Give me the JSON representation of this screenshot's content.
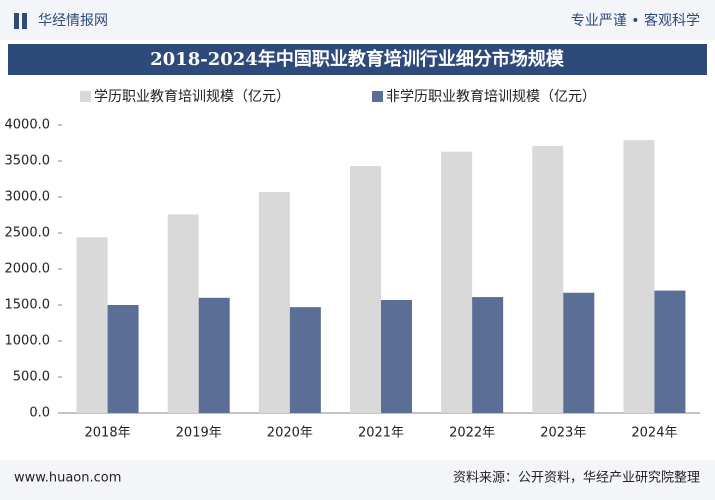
{
  "header": {
    "brand": "华经情报网",
    "slogan": "专业严谨 • 客观科学"
  },
  "chart_data": {
    "type": "bar",
    "title": "2018-2024年中国职业教育培训行业细分市场规模",
    "categories": [
      "2018年",
      "2019年",
      "2020年",
      "2021年",
      "2022年",
      "2023年",
      "2024年"
    ],
    "series": [
      {
        "name": "学历职业教育培训规模（亿元）",
        "color": "#d9d9d9",
        "values": [
          2440,
          2760,
          3070,
          3430,
          3630,
          3710,
          3790
        ]
      },
      {
        "name": "非学历职业教育培训规模（亿元）",
        "color": "#5a6e96",
        "values": [
          1500,
          1600,
          1470,
          1570,
          1610,
          1670,
          1700
        ]
      }
    ],
    "ylim": [
      0,
      4000
    ],
    "yticks": [
      {
        "value": 0,
        "label": "0.0"
      },
      {
        "value": 500,
        "label": "500.0"
      },
      {
        "value": 1000,
        "label": "1000.0"
      },
      {
        "value": 1500,
        "label": "1500.0"
      },
      {
        "value": 2000,
        "label": "2000.0"
      },
      {
        "value": 2500,
        "label": "2500.0"
      },
      {
        "value": 3000,
        "label": "3000.0"
      },
      {
        "value": 3500,
        "label": "3500.0"
      },
      {
        "value": 4000,
        "label": "4000.0"
      }
    ],
    "grid": false
  },
  "footer": {
    "website": "www.huaon.com",
    "source": "资料来源：公开资料，华经产业研究院整理"
  }
}
